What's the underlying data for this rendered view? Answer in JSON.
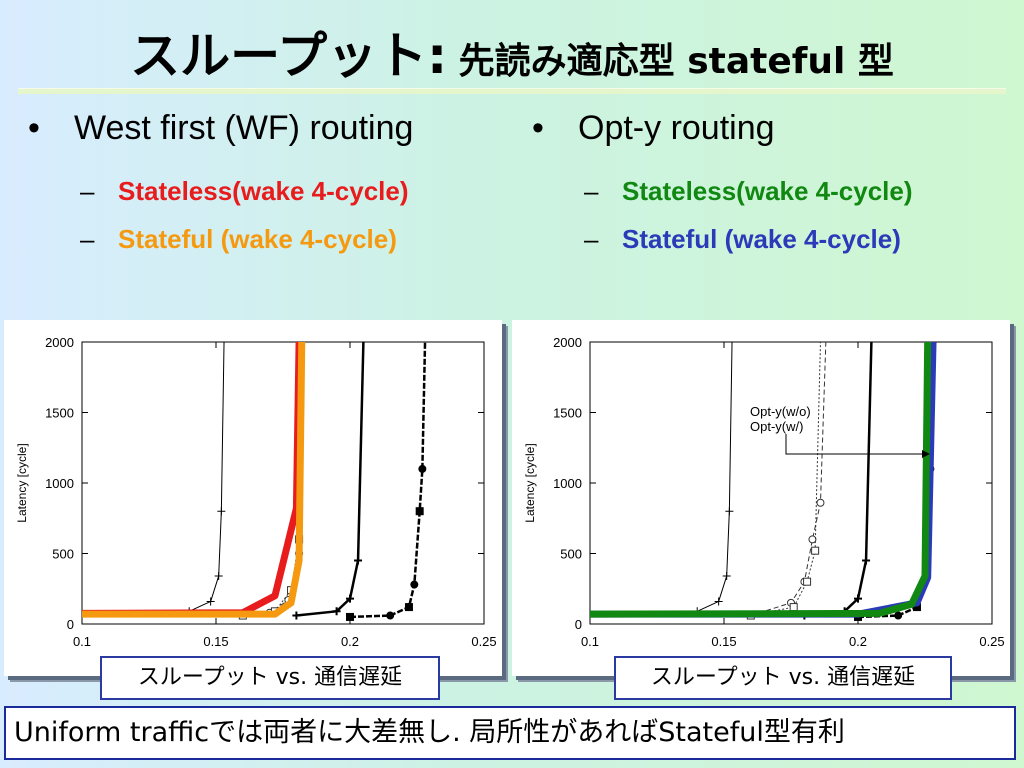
{
  "title": {
    "main": "スループット:",
    "sub": "先読み適応型 stateful 型"
  },
  "left_column": {
    "bullet": "West first (WF) routing",
    "items": [
      {
        "text": "Stateless(wake 4-cycle)",
        "color": "#e81c1c"
      },
      {
        "text": "Stateful (wake 4-cycle)",
        "color": "#f59a10"
      }
    ]
  },
  "right_column": {
    "bullet": "Opt-y routing",
    "items": [
      {
        "text": "Stateless(wake 4-cycle)",
        "color": "#118811"
      },
      {
        "text": "Stateful (wake 4-cycle)",
        "color": "#2b3ab8"
      }
    ]
  },
  "chart_data": [
    {
      "type": "line",
      "ylabel": "Latency [cycle]",
      "xlim": [
        0.1,
        0.25
      ],
      "ylim": [
        0,
        2000
      ],
      "x_ticks": [
        "0.1",
        "0.15",
        "0.2",
        "0.25"
      ],
      "y_ticks": [
        "0",
        "500",
        "1000",
        "1500",
        "2000"
      ],
      "annotations": [],
      "series": [
        {
          "style": "thin-plus",
          "color": "#000000",
          "points": [
            [
              0.1,
              60
            ],
            [
              0.14,
              90
            ],
            [
              0.148,
              160
            ],
            [
              0.151,
              340
            ],
            [
              0.152,
              800
            ],
            [
              0.153,
              2000
            ]
          ]
        },
        {
          "style": "dash-circle",
          "color": "#333333",
          "points": [
            [
              0.16,
              60
            ],
            [
              0.17,
              80
            ],
            [
              0.177,
              170
            ],
            [
              0.181,
              500
            ],
            [
              0.182,
              2000
            ]
          ]
        },
        {
          "style": "dash-square",
          "color": "#333333",
          "points": [
            [
              0.16,
              60
            ],
            [
              0.172,
              90
            ],
            [
              0.178,
              240
            ],
            [
              0.181,
              600
            ],
            [
              0.183,
              2000
            ]
          ]
        },
        {
          "style": "thick",
          "color": "#000000",
          "points": [
            [
              0.18,
              60
            ],
            [
              0.195,
              90
            ],
            [
              0.2,
              180
            ],
            [
              0.203,
              450
            ],
            [
              0.205,
              2000
            ]
          ]
        },
        {
          "style": "thick-dash-filled",
          "color": "#000000",
          "points": [
            [
              0.2,
              50
            ],
            [
              0.215,
              60
            ],
            [
              0.222,
              120
            ],
            [
              0.224,
              280
            ],
            [
              0.226,
              800
            ],
            [
              0.227,
              1100
            ],
            [
              0.228,
              2000
            ]
          ]
        },
        {
          "style": "highlight",
          "name": "Stateless(wake 4-cycle)",
          "color": "#e81c1c",
          "points": [
            [
              0.1,
              75
            ],
            [
              0.16,
              80
            ],
            [
              0.172,
              200
            ],
            [
              0.18,
              820
            ],
            [
              0.181,
              2000
            ]
          ]
        },
        {
          "style": "highlight",
          "name": "Stateful (wake 4-cycle)",
          "color": "#f59a10",
          "points": [
            [
              0.1,
              70
            ],
            [
              0.172,
              70
            ],
            [
              0.178,
              150
            ],
            [
              0.181,
              450
            ],
            [
              0.182,
              2000
            ]
          ]
        }
      ]
    },
    {
      "type": "line",
      "ylabel": "Latency [cycle]",
      "xlim": [
        0.1,
        0.25
      ],
      "ylim": [
        0,
        2000
      ],
      "x_ticks": [
        "0.1",
        "0.15",
        "0.2",
        "0.25"
      ],
      "y_ticks": [
        "0",
        "500",
        "1000",
        "1500",
        "2000"
      ],
      "annotations": [
        "Opt-y(w/o)",
        "Opt-y(w/)"
      ],
      "series": [
        {
          "style": "thin-plus",
          "color": "#000000",
          "points": [
            [
              0.1,
              60
            ],
            [
              0.14,
              90
            ],
            [
              0.148,
              160
            ],
            [
              0.151,
              340
            ],
            [
              0.152,
              800
            ],
            [
              0.153,
              2000
            ]
          ]
        },
        {
          "style": "dash-circle",
          "color": "#333333",
          "points": [
            [
              0.16,
              60
            ],
            [
              0.175,
              150
            ],
            [
              0.18,
              300
            ],
            [
              0.183,
              600
            ],
            [
              0.186,
              860
            ],
            [
              0.188,
              2000
            ]
          ]
        },
        {
          "style": "dash-square",
          "color": "#333333",
          "points": [
            [
              0.16,
              60
            ],
            [
              0.176,
              120
            ],
            [
              0.181,
              300
            ],
            [
              0.184,
              520
            ],
            [
              0.186,
              2000
            ]
          ]
        },
        {
          "style": "thick",
          "color": "#000000",
          "points": [
            [
              0.18,
              60
            ],
            [
              0.195,
              90
            ],
            [
              0.2,
              180
            ],
            [
              0.203,
              450
            ],
            [
              0.205,
              2000
            ]
          ]
        },
        {
          "style": "thick-dash-filled",
          "color": "#000000",
          "points": [
            [
              0.2,
              50
            ],
            [
              0.215,
              60
            ],
            [
              0.222,
              120
            ],
            [
              0.224,
              280
            ],
            [
              0.226,
              800
            ],
            [
              0.227,
              1100
            ],
            [
              0.228,
              2000
            ]
          ]
        },
        {
          "style": "highlight",
          "name": "Stateful (wake 4-cycle)",
          "color": "#2b3ab8",
          "points": [
            [
              0.1,
              70
            ],
            [
              0.2,
              70
            ],
            [
              0.222,
              150
            ],
            [
              0.226,
              330
            ],
            [
              0.228,
              2000
            ]
          ]
        },
        {
          "style": "highlight",
          "name": "Stateless(wake 4-cycle)",
          "color": "#118811",
          "points": [
            [
              0.1,
              70
            ],
            [
              0.208,
              75
            ],
            [
              0.22,
              140
            ],
            [
              0.225,
              340
            ],
            [
              0.226,
              2000
            ]
          ]
        }
      ]
    }
  ],
  "captions": [
    "スループット vs. 通信遅延",
    "スループット vs. 通信遅延"
  ],
  "footer": "Uniform trafficでは両者に大差無し. 局所性があればStateful型有利"
}
